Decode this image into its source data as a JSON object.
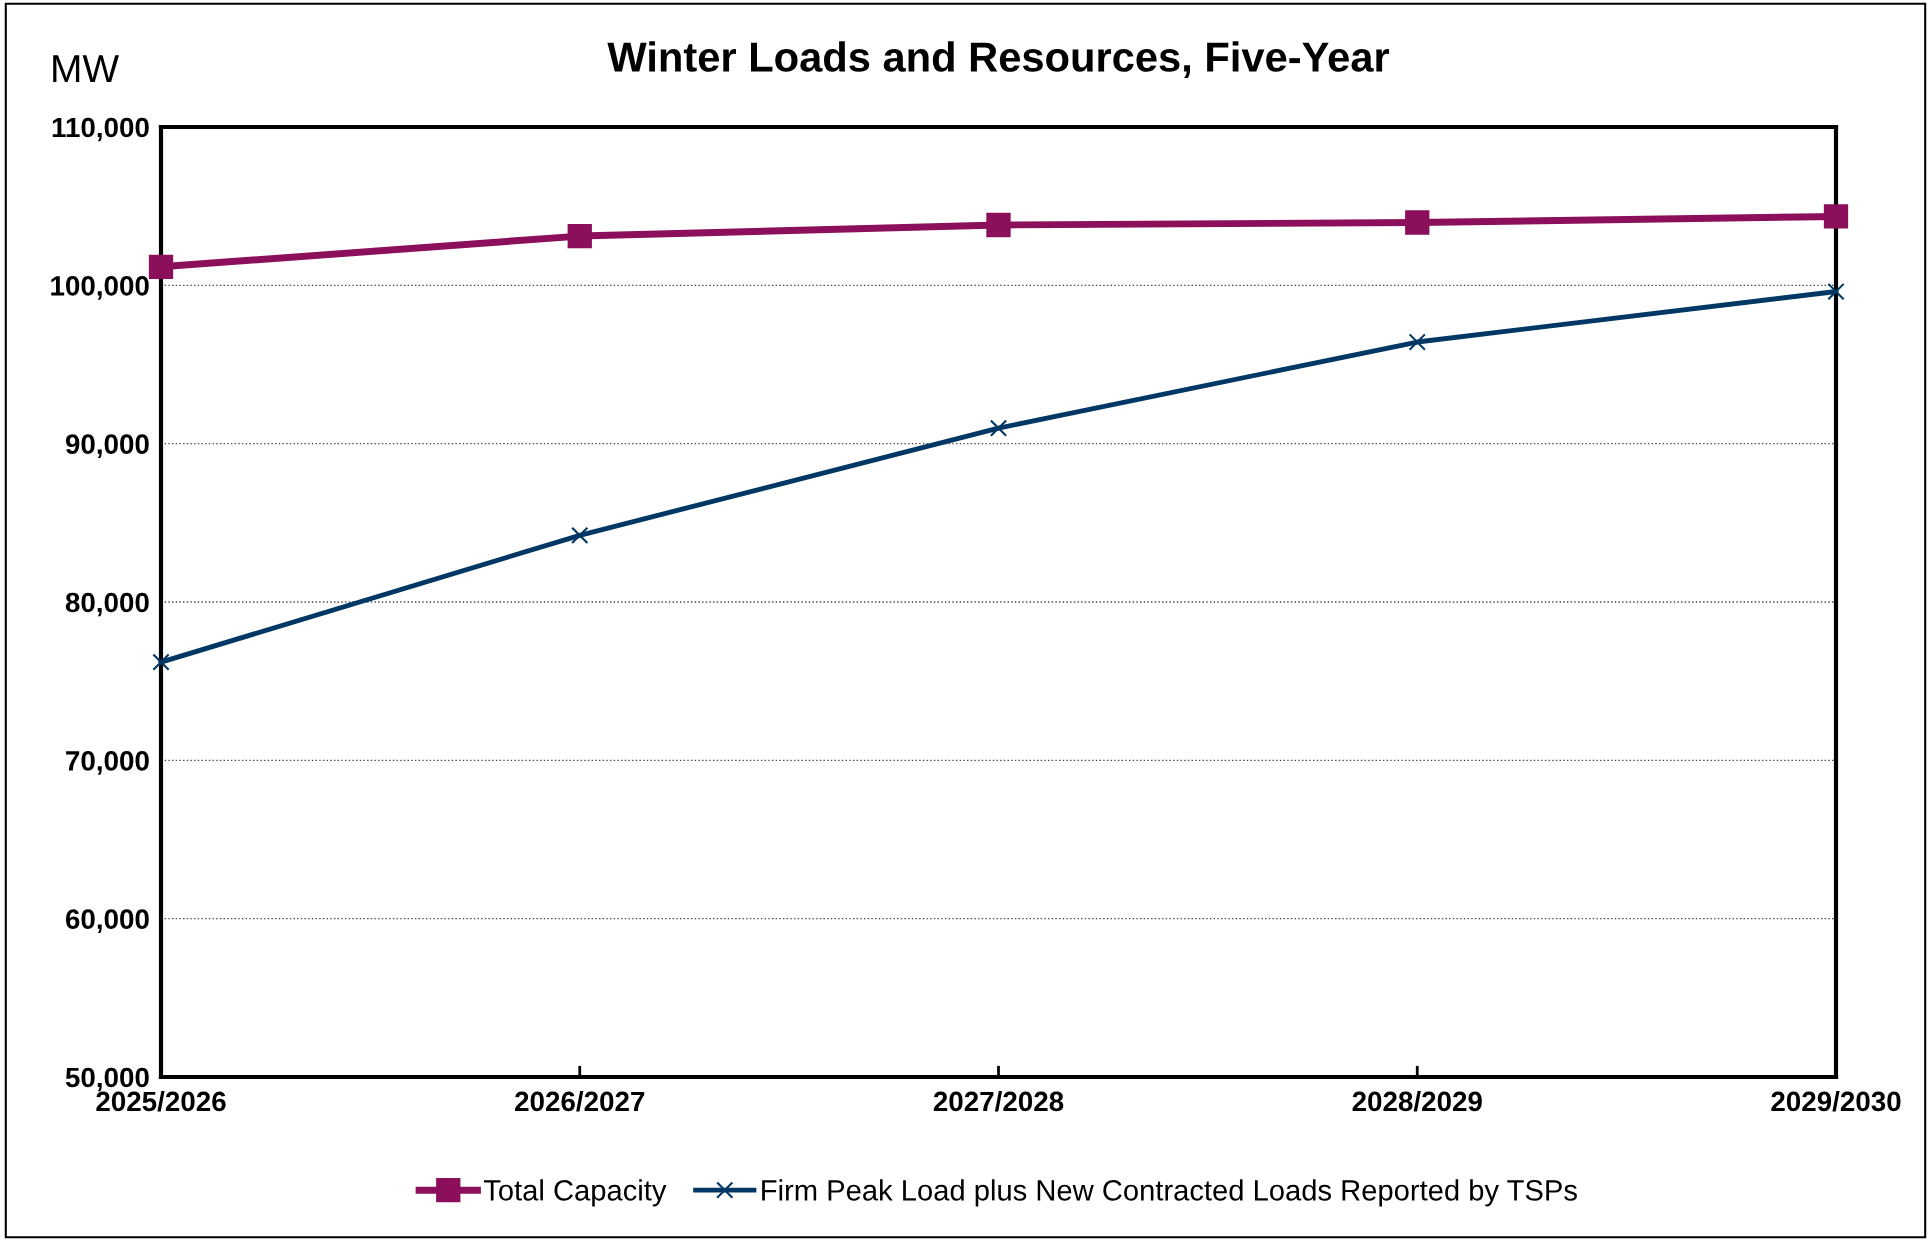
{
  "chart_data": {
    "type": "line",
    "title": "Winter Loads and Resources, Five-Year",
    "ylabel": "MW",
    "categories": [
      "2025/2026",
      "2026/2027",
      "2027/2028",
      "2028/2029",
      "2029/2030"
    ],
    "series": [
      {
        "name": "Total Capacity",
        "color": "#8b0f5a",
        "marker": "square",
        "values": [
          101170,
          103110,
          103810,
          103970,
          104350
        ]
      },
      {
        "name": "Firm Peak Load plus New Contracted Loads Reported by TSPs",
        "color": "#003764",
        "marker": "cross",
        "values": [
          76200,
          84210,
          90980,
          96420,
          99610
        ]
      }
    ],
    "ylim": [
      50000,
      110000
    ],
    "yticks": [
      {
        "value": 50000,
        "label": "50,000"
      },
      {
        "value": 60000,
        "label": "60,000"
      },
      {
        "value": 70000,
        "label": "70,000"
      },
      {
        "value": 80000,
        "label": "80,000"
      },
      {
        "value": 90000,
        "label": "90,000"
      },
      {
        "value": 100000,
        "label": "100,000"
      },
      {
        "value": 110000,
        "label": "110,000"
      }
    ],
    "grid": "y",
    "legend": "bottom",
    "line_style": "solid"
  }
}
